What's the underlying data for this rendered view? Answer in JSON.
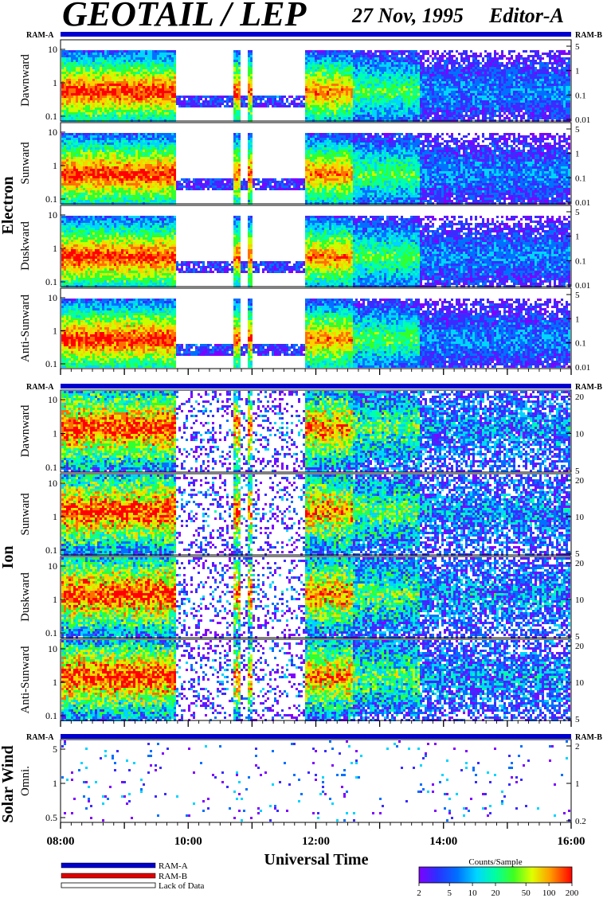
{
  "header": {
    "instrument": "GEOTAIL / LEP",
    "date": "27 Nov, 1995",
    "editor": "Editor-A"
  },
  "time_axis": {
    "start_hour": 8,
    "end_hour": 16,
    "tick_labels": [
      "08:00",
      "10:00",
      "12:00",
      "14:00",
      "16:00"
    ],
    "tick_hours": [
      8,
      10,
      12,
      14,
      16
    ],
    "label": "Universal Time"
  },
  "ram_labels": {
    "left": "RAM-A",
    "right": "RAM-B"
  },
  "colors": {
    "ram_a": "#0000cc",
    "ram_b": "#dd0000",
    "spectrogram_scale": [
      "#7f00ff",
      "#3a2cff",
      "#0070ff",
      "#00d4ff",
      "#00ffb0",
      "#30ff30",
      "#c8ff00",
      "#ffd000",
      "#ff7000",
      "#ff0000"
    ]
  },
  "chart_data": [
    {
      "type": "heatmap",
      "group": "Electron",
      "blocks": [
        {
          "panels": [
            {
              "ylabel": "Dawnward",
              "left_ticks": [
                "10",
                "1",
                "0.1"
              ],
              "right_ticks": [
                "5",
                "1",
                "0.1",
                "0.01"
              ]
            },
            {
              "ylabel": "Sunward",
              "left_ticks": [
                "10",
                "1",
                "0.1"
              ],
              "right_ticks": [
                "5",
                "1",
                "0.1",
                "0.01"
              ]
            },
            {
              "ylabel": "Duskward",
              "left_ticks": [
                "10",
                "1",
                "0.1"
              ],
              "right_ticks": [
                "5",
                "1",
                "0.1",
                "0.01"
              ]
            },
            {
              "ylabel": "Anti-Sunward",
              "left_ticks": [
                "10",
                "1",
                "0.1"
              ],
              "right_ticks": [
                "5",
                "1",
                "0.1",
                "0.01"
              ]
            }
          ]
        }
      ]
    },
    {
      "type": "heatmap",
      "group": "Ion",
      "blocks": [
        {
          "panels": [
            {
              "ylabel": "Dawnward",
              "left_ticks": [
                "10",
                "1",
                "0.1"
              ],
              "right_ticks": [
                "20",
                "10",
                "5"
              ]
            },
            {
              "ylabel": "Sunward",
              "left_ticks": [
                "10",
                "1",
                "0.1"
              ],
              "right_ticks": [
                "20",
                "10",
                "5"
              ]
            },
            {
              "ylabel": "Duskward",
              "left_ticks": [
                "10",
                "1",
                "0.1"
              ],
              "right_ticks": [
                "20",
                "10",
                "5"
              ]
            },
            {
              "ylabel": "Anti-Sunward",
              "left_ticks": [
                "10",
                "1",
                "0.1"
              ],
              "right_ticks": [
                "20",
                "10",
                "5"
              ]
            }
          ]
        }
      ]
    },
    {
      "type": "heatmap",
      "group": "Solar Wind",
      "blocks": [
        {
          "panels": [
            {
              "ylabel": "Omni.",
              "left_ticks": [
                "5",
                "1",
                "0.5"
              ],
              "right_ticks": [
                "2",
                "1",
                "0.2"
              ]
            }
          ]
        }
      ]
    }
  ],
  "legend": {
    "items": [
      "RAM-A",
      "RAM-B",
      "Lack of Data"
    ],
    "colorbar_title": "Counts/Sample",
    "colorbar_ticks": [
      "2",
      "5",
      "10",
      "20",
      "50",
      "100",
      "200"
    ]
  }
}
